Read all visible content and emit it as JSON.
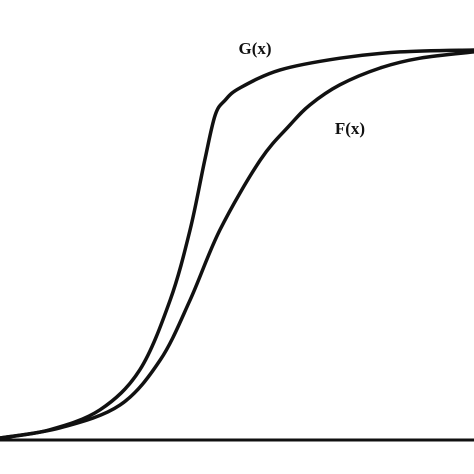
{
  "chart_data": {
    "type": "line",
    "xlim": [
      0,
      1
    ],
    "ylim": [
      0,
      1
    ],
    "series": [
      {
        "name": "G(x)",
        "color": "#111111",
        "x": [
          0,
          0.105,
          0.211,
          0.295,
          0.359,
          0.401,
          0.432,
          0.454,
          0.475,
          0.506,
          0.591,
          0.717,
          0.844,
          1
        ],
        "values": [
          0.005,
          0.026,
          0.077,
          0.179,
          0.357,
          0.536,
          0.714,
          0.829,
          0.867,
          0.898,
          0.944,
          0.974,
          0.99,
          0.995
        ]
      },
      {
        "name": "F(x)",
        "color": "#111111",
        "x": [
          0,
          0.127,
          0.253,
          0.338,
          0.401,
          0.464,
          0.549,
          0.612,
          0.654,
          0.717,
          0.802,
          0.886,
          1
        ],
        "values": [
          0.005,
          0.031,
          0.089,
          0.204,
          0.357,
          0.536,
          0.714,
          0.804,
          0.855,
          0.906,
          0.949,
          0.974,
          0.99
        ]
      }
    ]
  }
}
